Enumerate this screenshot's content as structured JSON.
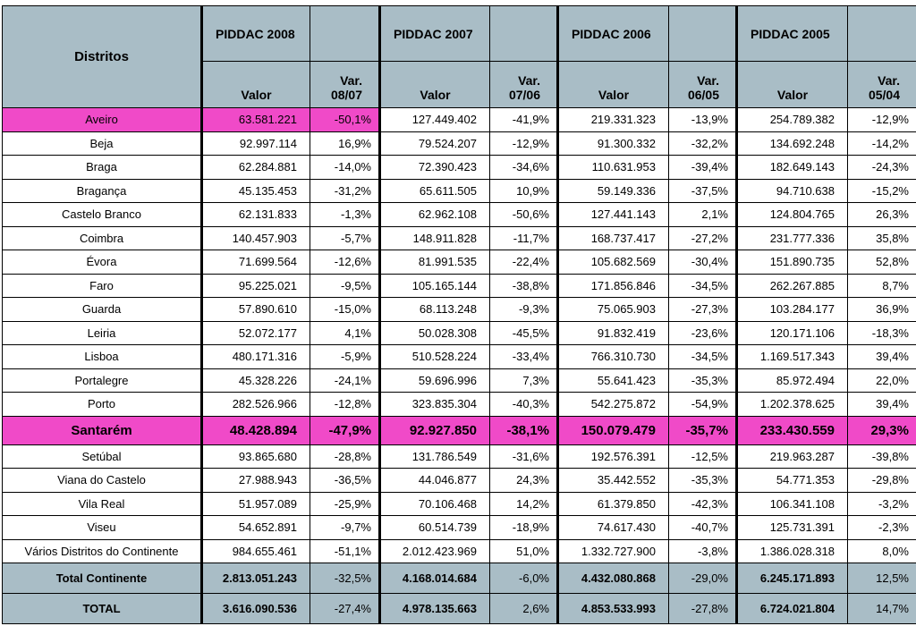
{
  "header": {
    "districts_label": "Distritos",
    "years": [
      "PIDDAC 2008",
      "PIDDAC 2007",
      "PIDDAC 2006",
      "PIDDAC 2005"
    ],
    "value_label": "Valor",
    "var_labels": [
      [
        "Var.",
        "08/07"
      ],
      [
        "Var.",
        "07/06"
      ],
      [
        "Var.",
        "06/05"
      ],
      [
        "Var.",
        "05/04"
      ]
    ]
  },
  "rows": [
    {
      "name": "Aveiro",
      "cells": [
        "63.581.221",
        "-50,1%",
        "127.449.402",
        "-41,9%",
        "219.331.323",
        "-13,9%",
        "254.789.382",
        "-12,9%"
      ]
    },
    {
      "name": "Beja",
      "cells": [
        "92.997.114",
        "16,9%",
        "79.524.207",
        "-12,9%",
        "91.300.332",
        "-32,2%",
        "134.692.248",
        "-14,2%"
      ]
    },
    {
      "name": "Braga",
      "cells": [
        "62.284.881",
        "-14,0%",
        "72.390.423",
        "-34,6%",
        "110.631.953",
        "-39,4%",
        "182.649.143",
        "-24,3%"
      ]
    },
    {
      "name": "Bragança",
      "cells": [
        "45.135.453",
        "-31,2%",
        "65.611.505",
        "10,9%",
        "59.149.336",
        "-37,5%",
        "94.710.638",
        "-15,2%"
      ]
    },
    {
      "name": "Castelo Branco",
      "cells": [
        "62.131.833",
        "-1,3%",
        "62.962.108",
        "-50,6%",
        "127.441.143",
        "2,1%",
        "124.804.765",
        "26,3%"
      ]
    },
    {
      "name": "Coimbra",
      "cells": [
        "140.457.903",
        "-5,7%",
        "148.911.828",
        "-11,7%",
        "168.737.417",
        "-27,2%",
        "231.777.336",
        "35,8%"
      ]
    },
    {
      "name": "Évora",
      "cells": [
        "71.699.564",
        "-12,6%",
        "81.991.535",
        "-22,4%",
        "105.682.569",
        "-30,4%",
        "151.890.735",
        "52,8%"
      ]
    },
    {
      "name": "Faro",
      "cells": [
        "95.225.021",
        "-9,5%",
        "105.165.144",
        "-38,8%",
        "171.856.846",
        "-34,5%",
        "262.267.885",
        "8,7%"
      ]
    },
    {
      "name": "Guarda",
      "cells": [
        "57.890.610",
        "-15,0%",
        "68.113.248",
        "-9,3%",
        "75.065.903",
        "-27,3%",
        "103.284.177",
        "36,9%"
      ]
    },
    {
      "name": "Leiria",
      "cells": [
        "52.072.177",
        "4,1%",
        "50.028.308",
        "-45,5%",
        "91.832.419",
        "-23,6%",
        "120.171.106",
        "-18,3%"
      ]
    },
    {
      "name": "Lisboa",
      "cells": [
        "480.171.316",
        "-5,9%",
        "510.528.224",
        "-33,4%",
        "766.310.730",
        "-34,5%",
        "1.169.517.343",
        "39,4%"
      ]
    },
    {
      "name": "Portalegre",
      "cells": [
        "45.328.226",
        "-24,1%",
        "59.696.996",
        "7,3%",
        "55.641.423",
        "-35,3%",
        "85.972.494",
        "22,0%"
      ]
    },
    {
      "name": "Porto",
      "cells": [
        "282.526.966",
        "-12,8%",
        "323.835.304",
        "-40,3%",
        "542.275.872",
        "-54,9%",
        "1.202.378.625",
        "39,4%"
      ]
    },
    {
      "name": "Santarém",
      "cells": [
        "48.428.894",
        "-47,9%",
        "92.927.850",
        "-38,1%",
        "150.079.479",
        "-35,7%",
        "233.430.559",
        "29,3%"
      ]
    },
    {
      "name": "Setúbal",
      "cells": [
        "93.865.680",
        "-28,8%",
        "131.786.549",
        "-31,6%",
        "192.576.391",
        "-12,5%",
        "219.963.287",
        "-39,8%"
      ]
    },
    {
      "name": "Viana do Castelo",
      "cells": [
        "27.988.943",
        "-36,5%",
        "44.046.877",
        "24,3%",
        "35.442.552",
        "-35,3%",
        "54.771.353",
        "-29,8%"
      ]
    },
    {
      "name": "Vila Real",
      "cells": [
        "51.957.089",
        "-25,9%",
        "70.106.468",
        "14,2%",
        "61.379.850",
        "-42,3%",
        "106.341.108",
        "-3,2%"
      ]
    },
    {
      "name": "Viseu",
      "cells": [
        "54.652.891",
        "-9,7%",
        "60.514.739",
        "-18,9%",
        "74.617.430",
        "-40,7%",
        "125.731.391",
        "-2,3%"
      ]
    },
    {
      "name": "Vários Distritos do Continente",
      "cells": [
        "984.655.461",
        "-51,1%",
        "2.012.423.969",
        "51,0%",
        "1.332.727.900",
        "-3,8%",
        "1.386.028.318",
        "8,0%"
      ]
    }
  ],
  "totals": [
    {
      "name": "Total Continente",
      "cells": [
        "2.813.051.243",
        "-32,5%",
        "4.168.014.684",
        "-6,0%",
        "4.432.080.868",
        "-29,0%",
        "6.245.171.893",
        "12,5%"
      ]
    },
    {
      "name": "TOTAL",
      "cells": [
        "3.616.090.536",
        "-27,4%",
        "4.978.135.663",
        "2,6%",
        "4.853.533.993",
        "-27,8%",
        "6.724.021.804",
        "14,7%"
      ]
    }
  ],
  "colors": {
    "header_bg": "#a9bdc6",
    "highlight": "#f04ac8"
  }
}
